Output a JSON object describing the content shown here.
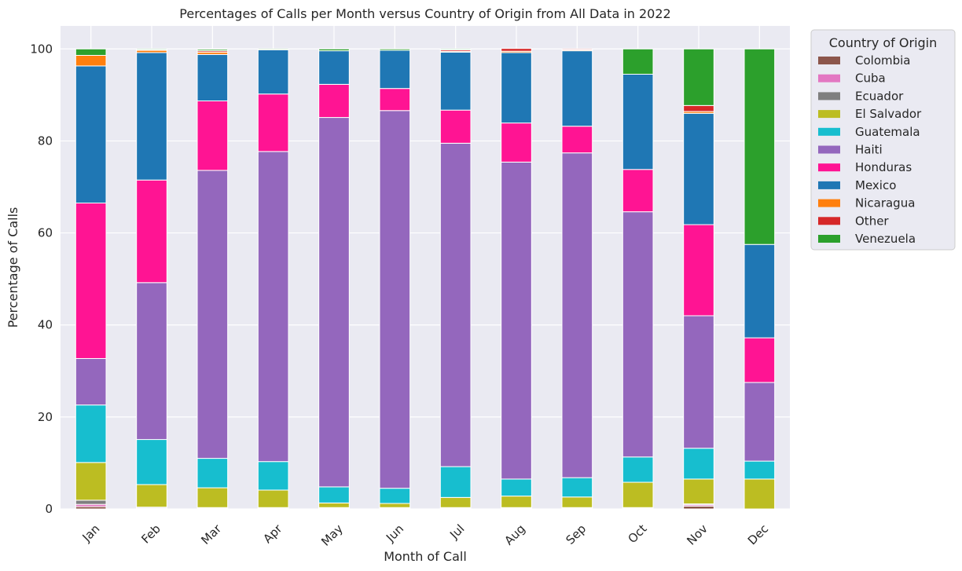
{
  "chart_data": {
    "type": "bar",
    "stacked": true,
    "title": "Percentages of Calls per Month versus Country of Origin from All Data in 2022",
    "xlabel": "Month of Call",
    "ylabel": "Percentage of Calls",
    "ylim": [
      0,
      105
    ],
    "yticks": [
      0,
      20,
      40,
      60,
      80,
      100
    ],
    "grid": true,
    "legend_title": "Country of Origin",
    "legend_position": "outside-top-right",
    "categories": [
      "Jan",
      "Feb",
      "Mar",
      "Apr",
      "May",
      "Jun",
      "Jul",
      "Aug",
      "Sep",
      "Oct",
      "Nov",
      "Dec"
    ],
    "series": [
      {
        "name": "Colombia",
        "color": "#8c564b",
        "values": [
          0.5,
          0.1,
          0.1,
          0.1,
          0.1,
          0.1,
          0.1,
          0.1,
          0.1,
          0.1,
          0.6,
          0
        ]
      },
      {
        "name": "Cuba",
        "color": "#e377c2",
        "values": [
          0.5,
          0.1,
          0.1,
          0.1,
          0.1,
          0.1,
          0.1,
          0.1,
          0.1,
          0.1,
          0.3,
          0
        ]
      },
      {
        "name": "Ecuador",
        "color": "#7f7f7f",
        "values": [
          0.9,
          0.2,
          0.1,
          0.1,
          0.1,
          0.1,
          0.1,
          0.1,
          0.1,
          0.1,
          0.2,
          0
        ]
      },
      {
        "name": "El Salvador",
        "color": "#bcbd22",
        "values": [
          8.2,
          4.9,
          4.3,
          3.8,
          1.0,
          0.9,
          2.2,
          2.5,
          2.3,
          5.5,
          5.4,
          6.5
        ]
      },
      {
        "name": "Guatemala",
        "color": "#17becf",
        "values": [
          12.5,
          9.8,
          6.4,
          6.2,
          3.5,
          3.3,
          6.7,
          3.7,
          4.2,
          5.5,
          6.7,
          3.9
        ]
      },
      {
        "name": "Haiti",
        "color": "#9467bd",
        "values": [
          10.1,
          34.1,
          62.6,
          67.4,
          80.3,
          82.1,
          70.3,
          68.9,
          70.6,
          53.3,
          28.8,
          17.1
        ]
      },
      {
        "name": "Honduras",
        "color": "#ff1493",
        "values": [
          33.8,
          22.3,
          15.1,
          12.5,
          7.2,
          4.8,
          7.2,
          8.5,
          5.8,
          9.2,
          19.8,
          9.7
        ]
      },
      {
        "name": "Mexico",
        "color": "#1f77b4",
        "values": [
          29.8,
          27.7,
          10.1,
          9.6,
          7.3,
          8.3,
          12.6,
          15.3,
          16.4,
          20.7,
          24.2,
          20.3
        ]
      },
      {
        "name": "Nicaragua",
        "color": "#ff7f0e",
        "values": [
          2.3,
          0.5,
          0.5,
          0,
          0,
          0,
          0.2,
          0.3,
          0.2,
          0,
          0.4,
          0
        ]
      },
      {
        "name": "Other",
        "color": "#d62728",
        "values": [
          0,
          0.1,
          0.3,
          0,
          0,
          0,
          0.3,
          0.6,
          0.2,
          0,
          1.3,
          0
        ]
      },
      {
        "name": "Venezuela",
        "color": "#2ca02c",
        "values": [
          1.4,
          0.2,
          0.3,
          0.2,
          0.4,
          0.3,
          0.2,
          0,
          0,
          5.5,
          12.3,
          42.5
        ]
      }
    ]
  }
}
